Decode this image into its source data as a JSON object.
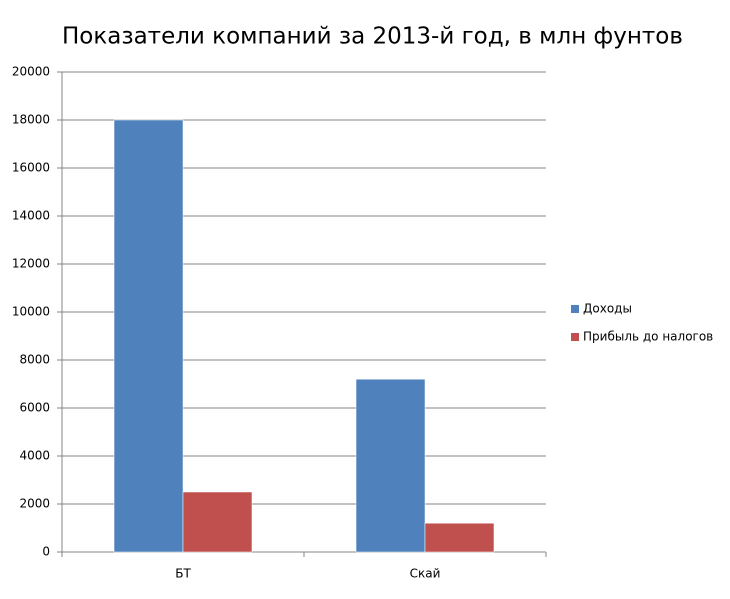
{
  "chart_data": {
    "type": "bar",
    "title": "Показатели компаний за 2013-й год, в млн фунтов",
    "categories": [
      "БТ",
      "Скай"
    ],
    "series": [
      {
        "name": "Доходы",
        "color": "#4f81bd",
        "values": [
          18000,
          7200
        ]
      },
      {
        "name": "Прибыль до налогов",
        "color": "#c0504d",
        "values": [
          2500,
          1200
        ]
      }
    ],
    "ylim": [
      0,
      20000
    ],
    "yticks": [
      0,
      2000,
      4000,
      6000,
      8000,
      10000,
      12000,
      14000,
      16000,
      18000,
      20000
    ],
    "grid": true,
    "legend": "right"
  }
}
